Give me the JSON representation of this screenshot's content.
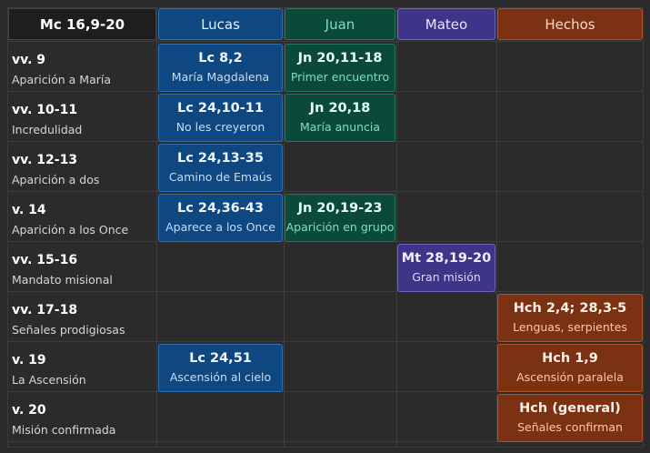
{
  "header": {
    "corner": "Mc 16,9-20",
    "columns": [
      {
        "key": "luke",
        "label": "Lucas",
        "bg": "#0f4780",
        "border": "#2f6fb3",
        "text": "#e3efff"
      },
      {
        "key": "john",
        "label": "Juan",
        "bg": "#0b4a3a",
        "border": "#1f7a5d",
        "text": "#7ee0b8"
      },
      {
        "key": "matt",
        "label": "Mateo",
        "bg": "#3f3588",
        "border": "#6f62c8",
        "text": "#e8e4ff"
      },
      {
        "key": "acts",
        "label": "Hechos",
        "bg": "#7a3213",
        "border": "#b2532a",
        "text": "#ffd9c4"
      }
    ]
  },
  "rows": [
    {
      "verse": "vv. 9",
      "desc": "Aparición a María"
    },
    {
      "verse": "vv. 10-11",
      "desc": "Incredulidad"
    },
    {
      "verse": "vv. 12-13",
      "desc": "Aparición a dos"
    },
    {
      "verse": "v. 14",
      "desc": "Aparición a los Once"
    },
    {
      "verse": "vv. 15-16",
      "desc": "Mandato misional"
    },
    {
      "verse": "vv. 17-18",
      "desc": "Señales prodigiosas"
    },
    {
      "verse": "v. 19",
      "desc": "La Ascensión"
    },
    {
      "verse": "v. 20",
      "desc": "Misión confirmada"
    }
  ],
  "cells": [
    {
      "row": 0,
      "col": "luke",
      "ref": "Lc 8,2",
      "sub": "María Magdalena"
    },
    {
      "row": 0,
      "col": "john",
      "ref": "Jn 20,11-18",
      "sub": "Primer encuentro"
    },
    {
      "row": 1,
      "col": "luke",
      "ref": "Lc 24,10-11",
      "sub": "No les creyeron"
    },
    {
      "row": 1,
      "col": "john",
      "ref": "Jn 20,18",
      "sub": "María anuncia"
    },
    {
      "row": 2,
      "col": "luke",
      "ref": "Lc 24,13-35",
      "sub": "Camino de Emaús"
    },
    {
      "row": 3,
      "col": "luke",
      "ref": "Lc 24,36-43",
      "sub": "Aparece a los Once"
    },
    {
      "row": 3,
      "col": "john",
      "ref": "Jn 20,19-23",
      "sub": "Aparición en grupo"
    },
    {
      "row": 4,
      "col": "matt",
      "ref": "Mt 28,19-20",
      "sub": "Gran misión"
    },
    {
      "row": 5,
      "col": "acts",
      "ref": "Hch 2,4; 28,3-5",
      "sub": "Lenguas, serpientes"
    },
    {
      "row": 6,
      "col": "luke",
      "ref": "Lc 24,51",
      "sub": "Ascensión al cielo"
    },
    {
      "row": 6,
      "col": "acts",
      "ref": "Hch 1,9",
      "sub": "Ascensión paralela"
    },
    {
      "row": 7,
      "col": "acts",
      "ref": "Hch (general)",
      "sub": "Señales confirman"
    }
  ]
}
